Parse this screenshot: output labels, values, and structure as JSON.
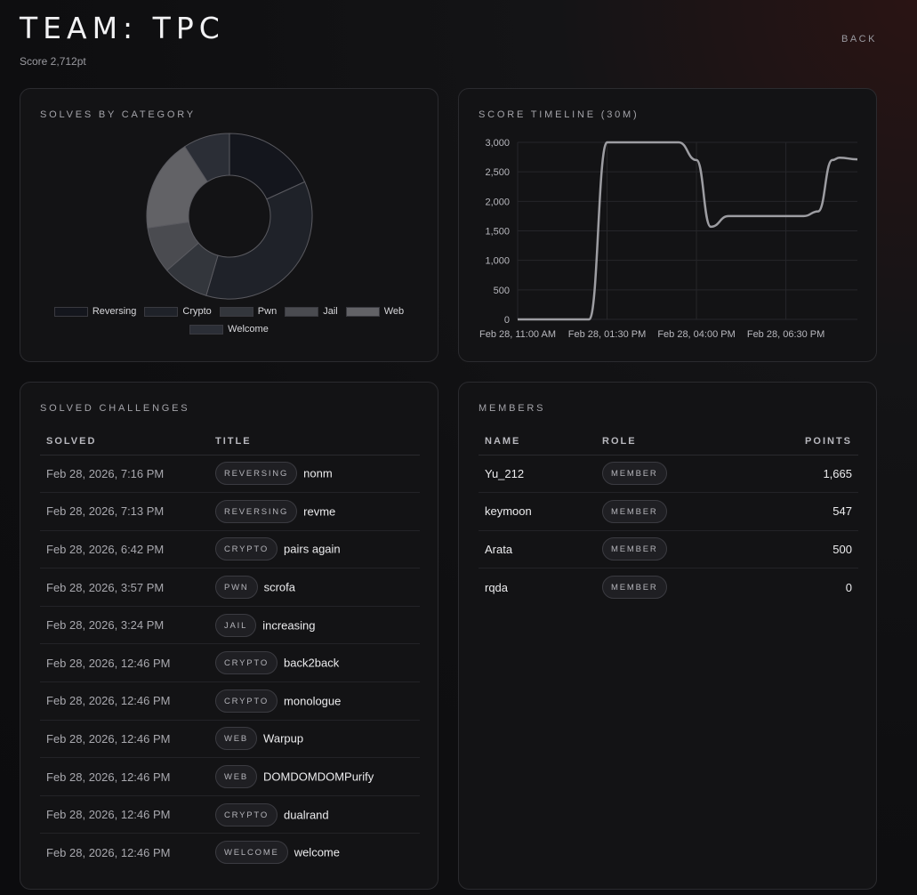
{
  "header": {
    "title": "TEAM: TPC",
    "score": "Score 2,712pt",
    "back_label": "BACK"
  },
  "category_card": {
    "title": "SOLVES BY CATEGORY"
  },
  "timeline_card": {
    "title": "SCORE TIMELINE (30M)"
  },
  "chart_data": [
    {
      "type": "pie",
      "variant": "donut",
      "categories": [
        "Reversing",
        "Crypto",
        "Pwn",
        "Jail",
        "Web",
        "Welcome"
      ],
      "values": [
        2,
        4,
        1,
        1,
        2,
        1
      ],
      "colors": [
        "#14161d",
        "#1f2229",
        "#33363c",
        "#4a4b50",
        "#626266",
        "#2b2e36"
      ],
      "legend": "bottom"
    },
    {
      "type": "line",
      "x_ticks": [
        "Feb 28, 11:00 AM",
        "Feb 28, 01:30 PM",
        "Feb 28, 04:00 PM",
        "Feb 28, 06:30 PM"
      ],
      "y_ticks": [
        "3,000",
        "2,500",
        "2,000",
        "1,500",
        "1,000",
        "500",
        "0"
      ],
      "ylim": [
        0,
        3000
      ],
      "x_hours_range": [
        11.0,
        20.5
      ],
      "series": [
        {
          "x": [
            11.0,
            12.5,
            13.0,
            13.5,
            14.0,
            15.5,
            16.0,
            16.4,
            16.9,
            17.5,
            18.5,
            19.0,
            19.4,
            19.8,
            20.0,
            20.5
          ],
          "y": [
            0,
            0,
            0,
            3000,
            3000,
            3000,
            2700,
            1570,
            1750,
            1750,
            1750,
            1750,
            1830,
            2700,
            2740,
            2712
          ],
          "color": "#9d9da2"
        }
      ],
      "grid": true
    }
  ],
  "solved_card": {
    "title": "SOLVED CHALLENGES",
    "columns": [
      "SOLVED",
      "TITLE"
    ],
    "rows": [
      {
        "solved": "Feb 28, 2026, 7:16 PM",
        "category": "REVERSING",
        "title": "nonm"
      },
      {
        "solved": "Feb 28, 2026, 7:13 PM",
        "category": "REVERSING",
        "title": "revme"
      },
      {
        "solved": "Feb 28, 2026, 6:42 PM",
        "category": "CRYPTO",
        "title": "pairs again"
      },
      {
        "solved": "Feb 28, 2026, 3:57 PM",
        "category": "PWN",
        "title": "scrofa"
      },
      {
        "solved": "Feb 28, 2026, 3:24 PM",
        "category": "JAIL",
        "title": "increasing"
      },
      {
        "solved": "Feb 28, 2026, 12:46 PM",
        "category": "CRYPTO",
        "title": "back2back"
      },
      {
        "solved": "Feb 28, 2026, 12:46 PM",
        "category": "CRYPTO",
        "title": "monologue"
      },
      {
        "solved": "Feb 28, 2026, 12:46 PM",
        "category": "WEB",
        "title": "Warpup"
      },
      {
        "solved": "Feb 28, 2026, 12:46 PM",
        "category": "WEB",
        "title": "DOMDOMDOMPurify"
      },
      {
        "solved": "Feb 28, 2026, 12:46 PM",
        "category": "CRYPTO",
        "title": "dualrand"
      },
      {
        "solved": "Feb 28, 2026, 12:46 PM",
        "category": "WELCOME",
        "title": "welcome"
      }
    ]
  },
  "members_card": {
    "title": "MEMBERS",
    "columns": [
      "NAME",
      "ROLE",
      "POINTS"
    ],
    "rows": [
      {
        "name": "Yu_212",
        "role": "MEMBER",
        "points": "1,665"
      },
      {
        "name": "keymoon",
        "role": "MEMBER",
        "points": "547"
      },
      {
        "name": "Arata",
        "role": "MEMBER",
        "points": "500"
      },
      {
        "name": "rqda",
        "role": "MEMBER",
        "points": "0"
      }
    ]
  }
}
